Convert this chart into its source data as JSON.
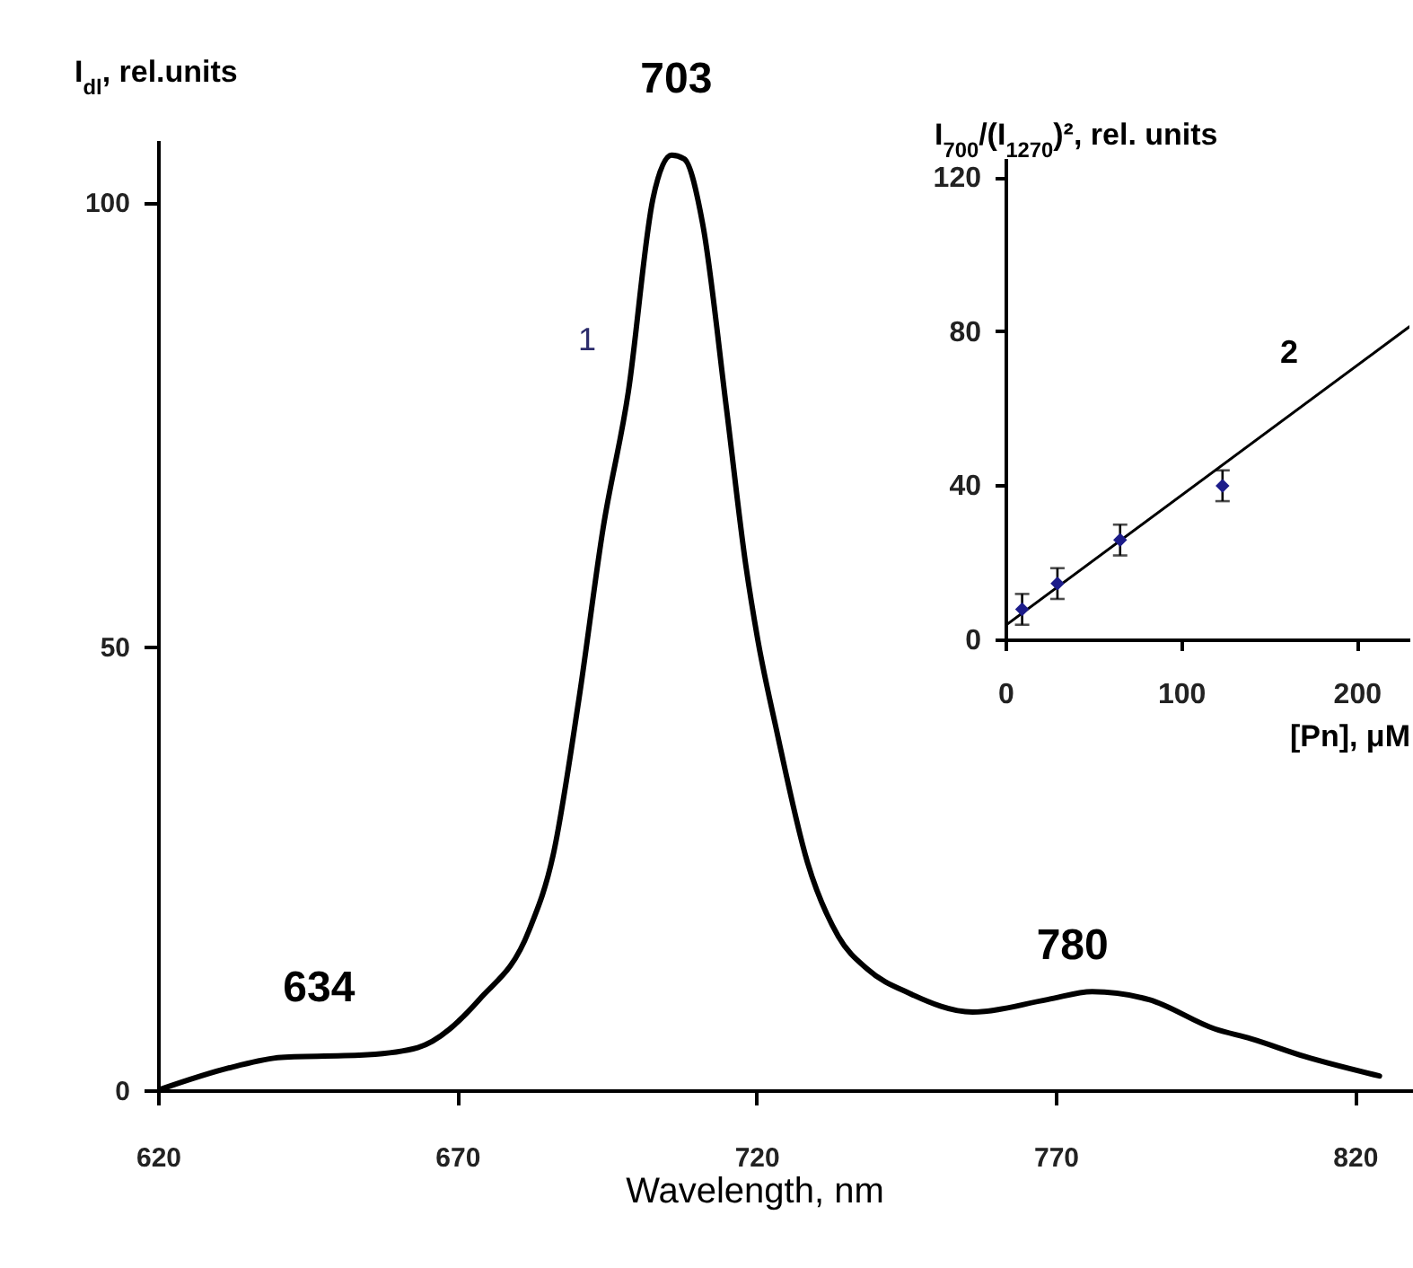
{
  "chart_data": [
    {
      "type": "line",
      "xlabel": "Wavelength, nm",
      "ylabel": "I$_{dl}$, rel.units",
      "xlim": [
        620,
        830
      ],
      "ylim": [
        0,
        107
      ],
      "xticks": [
        620,
        670,
        720,
        770,
        820
      ],
      "yticks": [
        0,
        50,
        100
      ],
      "x": [
        620,
        632.4,
        640.6,
        655,
        663.4,
        673.8,
        682,
        686,
        690.3,
        694.4,
        698.6,
        702.7,
        705.8,
        707.9,
        711,
        715,
        718.2,
        720.2,
        723.4,
        728.5,
        733.7,
        738.6,
        745.6,
        756.1,
        768.6,
        776.1,
        785.6,
        796.6,
        802.6,
        811.6,
        824.1
      ],
      "series": [
        {
          "color": "#000000",
          "values": [
            0,
            2.6,
            3.7,
            4.0,
            4.8,
            10.3,
            18,
            26.4,
            43.9,
            63.4,
            78.7,
            100.4,
            105.3,
            104.9,
            97.6,
            76.7,
            59.2,
            50.8,
            40.4,
            25.7,
            17.3,
            13.6,
            10.9,
            8.8,
            10.2,
            11.1,
            10.2,
            6.9,
            5.8,
            3.8,
            1.6
          ]
        }
      ],
      "annotations": [
        {
          "text": "703",
          "x": 703,
          "y": 105.3
        },
        {
          "text": "634",
          "x": 634,
          "y": 3.7
        },
        {
          "text": "780",
          "x": 780,
          "y": 10.5
        },
        "1"
      ]
    },
    {
      "type": "scatter",
      "xlabel": "[Pn], μM",
      "ylabel": "I$_{700}$/(I$_{1270}$)², rel. units",
      "xlim": [
        0,
        230
      ],
      "ylim": [
        0,
        125
      ],
      "xticks": [
        0,
        100,
        200
      ],
      "yticks": [
        0,
        40,
        80,
        120
      ],
      "series": [
        {
          "marker": "diamond",
          "color": "#1c1c8a",
          "x": [
            9.5,
            29.6,
            65.3,
            123.6
          ],
          "values": [
            7.8,
            14.5,
            25.8,
            39.9
          ],
          "errors": [
            4,
            4,
            4,
            4
          ]
        },
        {
          "type": "line",
          "color": "#000000",
          "x": [
            0,
            230
          ],
          "values": [
            3.6,
            81.2
          ]
        }
      ],
      "annotations": [
        "2"
      ]
    }
  ]
}
